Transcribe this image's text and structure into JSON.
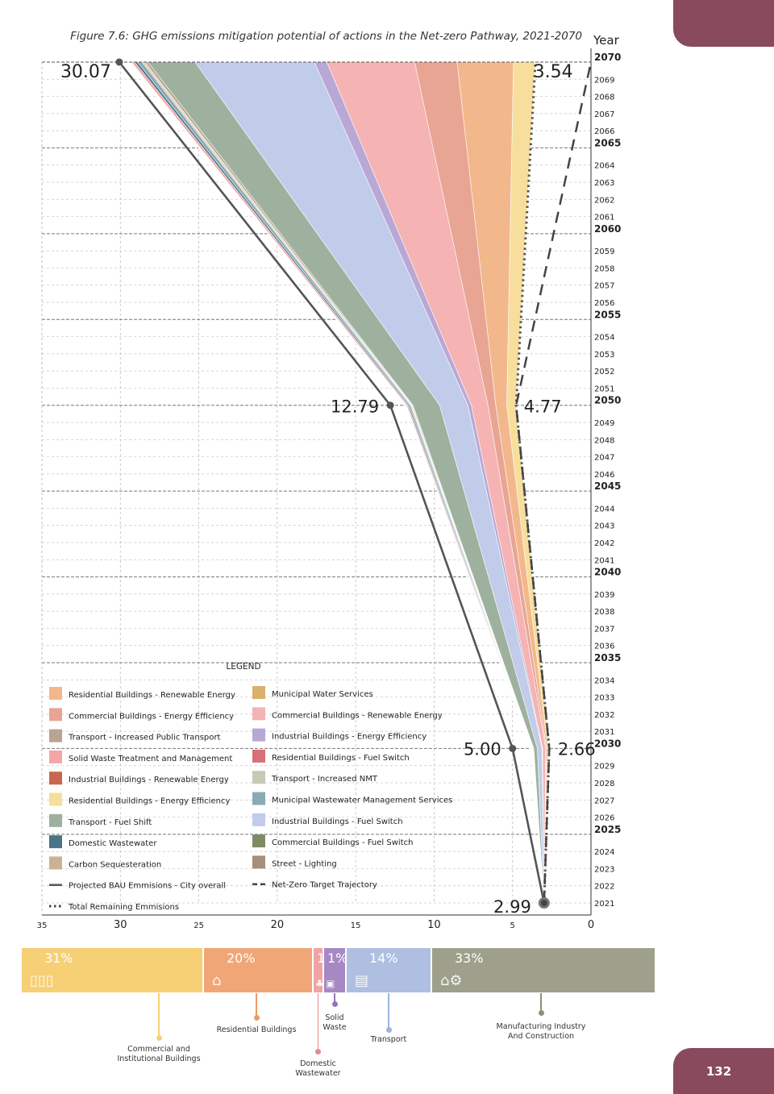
{
  "figure_title": "Figure 7.6: GHG emissions mitigation potential of actions in the Net-zero Pathway, 2021-2070",
  "page_number": "132",
  "colors": {
    "accent_tab": "#8a4a5e",
    "bau_line": "#555555",
    "net_zero_line": "#444444"
  },
  "chart_data": {
    "type": "area",
    "orientation": "horizontal",
    "yaxis": {
      "label": "Year",
      "range": [
        2021,
        2070
      ],
      "tick_labels": [
        "2070",
        "2069",
        "2068",
        "2067",
        "2066",
        "2065",
        "2064",
        "2063",
        "2062",
        "2061",
        "2060",
        "2059",
        "2058",
        "2057",
        "2056",
        "2055",
        "2054",
        "2053",
        "2052",
        "2051",
        "2050",
        "2049",
        "2048",
        "2047",
        "2046",
        "2045",
        "2044",
        "2043",
        "2042",
        "2041",
        "2040",
        "2039",
        "2038",
        "2037",
        "2036",
        "2035",
        "2034",
        "2033",
        "2032",
        "2031",
        "2030",
        "2029",
        "2028",
        "2027",
        "2026",
        "2025",
        "2024",
        "2023",
        "2022",
        "2021"
      ],
      "bold_ticks": [
        "2070",
        "2065",
        "2060",
        "2055",
        "2050",
        "2045",
        "2040",
        "2035",
        "2030",
        "2025"
      ]
    },
    "xaxis": {
      "range": [
        35,
        0
      ],
      "reversed": true,
      "tick_labels": [
        "35",
        "30",
        "25",
        "20",
        "15",
        "10",
        "5",
        "0"
      ],
      "tick_values": [
        35,
        30,
        25,
        20,
        15,
        10,
        5,
        0
      ],
      "bold_ticks": [
        "30",
        "20",
        "10",
        "0"
      ]
    },
    "grid": true,
    "key_years": [
      2021,
      2030,
      2050,
      2070
    ],
    "bau": {
      "name": "Projected BAU Emmisions - City overall",
      "values": [
        2.99,
        5.0,
        12.79,
        30.07
      ]
    },
    "remaining": {
      "name": "Total Remaining Emmisions",
      "values": [
        2.99,
        2.66,
        4.77,
        3.54
      ]
    },
    "net_zero": {
      "name": "Net-Zero Target Trajectory",
      "values": [
        2.99,
        2.66,
        4.77,
        0
      ]
    },
    "annotations": [
      {
        "text": "30.07",
        "year": 2070,
        "value": 30.07
      },
      {
        "text": "3.54",
        "year": 2070,
        "value": 3.54
      },
      {
        "text": "12.79",
        "year": 2050,
        "value": 12.79
      },
      {
        "text": "4.77",
        "year": 2050,
        "value": 4.77
      },
      {
        "text": "5.00",
        "year": 2030,
        "value": 5.0
      },
      {
        "text": "2.66",
        "year": 2030,
        "value": 2.66
      },
      {
        "text": "2.99",
        "year": 2021,
        "value": 2.99
      }
    ],
    "bands": [
      {
        "name": "Residential Buildings - Energy Efficiency",
        "color": "#f7de9c",
        "values": [
          0,
          0.1,
          0.6,
          1.4
        ]
      },
      {
        "name": "Residential Buildings - Renewable Energy",
        "color": "#f2b88c",
        "values": [
          0,
          0.08,
          0.7,
          3.6
        ]
      },
      {
        "name": "Commercial Buildings - Energy Efficiency",
        "color": "#e8a594",
        "values": [
          0,
          0.05,
          0.5,
          2.7
        ]
      },
      {
        "name": "Commercial Buildings - Renewable Energy",
        "color": "#f5b3b3",
        "values": [
          0,
          0.2,
          1.05,
          5.6
        ]
      },
      {
        "name": "Industrial Buildings  - Energy Efficiency",
        "color": "#b9a8d6",
        "values": [
          0,
          0.03,
          0.23,
          0.8
        ]
      },
      {
        "name": "Industrial Buildings   - Fuel Switch",
        "color": "#c1ccea",
        "values": [
          0,
          0.3,
          1.8,
          7.6
        ]
      },
      {
        "name": "Transport - Fuel Shift",
        "color": "#9eb19e",
        "values": [
          0,
          0.23,
          1.7,
          3.0
        ]
      },
      {
        "name": "Transport - Increased Public Transport",
        "color": "#b7a492",
        "values": [
          0,
          0.02,
          0.05,
          0.2
        ]
      },
      {
        "name": "Transport - Increased NMT",
        "color": "#c7c8b8",
        "values": [
          0,
          0.02,
          0.05,
          0.1
        ]
      },
      {
        "name": "Municipal Water Services",
        "color": "#d9b06e",
        "values": [
          0,
          0.02,
          0.05,
          0.09
        ]
      },
      {
        "name": "Municipal Wastewater Management Services",
        "color": "#8aaab6",
        "values": [
          0,
          0.02,
          0.1,
          0.28
        ]
      },
      {
        "name": "Domestic Wastewater",
        "color": "#4a7488",
        "values": [
          0,
          0.02,
          0.08,
          0.18
        ]
      },
      {
        "name": "Solid Waste Treatment and Management",
        "color": "#f4a6a6",
        "values": [
          0,
          0.02,
          0.08,
          0.2
        ]
      },
      {
        "name": "Industrial Buildings - Renewable Energy",
        "color": "#c96650",
        "values": [
          0,
          0.02,
          0.01,
          0.03
        ]
      },
      {
        "name": "Residential Buildings   - Fuel Switch",
        "color": "#d96f78",
        "values": [
          0,
          0.01,
          0.01,
          0.03
        ]
      },
      {
        "name": "Commercial Buildings  - Fuel Switch",
        "color": "#7e8c66",
        "values": [
          0,
          0.01,
          0.01,
          0.02
        ]
      },
      {
        "name": "Street - Lighting",
        "color": "#a58e7a",
        "values": [
          0,
          0.01,
          0.01,
          0.03
        ]
      },
      {
        "name": "Carbon Sequesteration",
        "color": "#c8b394",
        "values": [
          0,
          0.01,
          0.01,
          0.01
        ]
      }
    ]
  },
  "legend": {
    "title": "LEGEND",
    "left": [
      {
        "label": "Residential Buildings - Renewable Energy",
        "color": "#f2b88c",
        "kind": "swatch"
      },
      {
        "label": "Commercial Buildings - Energy Efficiency",
        "color": "#e8a594",
        "kind": "swatch"
      },
      {
        "label": "Transport - Increased Public Transport",
        "color": "#b7a492",
        "kind": "swatch"
      },
      {
        "label": "Solid Waste Treatment and Management",
        "color": "#f4a6a6",
        "kind": "swatch"
      },
      {
        "label": "Industrial Buildings - Renewable Energy",
        "color": "#c96650",
        "kind": "swatch"
      },
      {
        "label": "Residential Buildings - Energy Efficiency",
        "color": "#f7de9c",
        "kind": "swatch"
      },
      {
        "label": "Transport - Fuel Shift",
        "color": "#9eb19e",
        "kind": "swatch"
      },
      {
        "label": "Domestic Wastewater",
        "color": "#4a7488",
        "kind": "swatch"
      },
      {
        "label": "Carbon Sequesteration",
        "color": "#c8b394",
        "kind": "swatch"
      },
      {
        "label": "Projected BAU Emmisions - City overall",
        "color": "#555555",
        "kind": "solid"
      },
      {
        "label": "Total Remaining Emmisions",
        "color": "#444444",
        "kind": "dotted"
      }
    ],
    "right": [
      {
        "label": "Municipal Water Services",
        "color": "#d9b06e",
        "kind": "swatch"
      },
      {
        "label": "Commercial Buildings - Renewable Energy",
        "color": "#f5b3b3",
        "kind": "swatch"
      },
      {
        "label": "Industrial Buildings  - Energy Efficiency",
        "color": "#b9a8d6",
        "kind": "swatch"
      },
      {
        "label": "Residential Buildings   - Fuel Switch",
        "color": "#d96f78",
        "kind": "swatch"
      },
      {
        "label": "Transport - Increased NMT",
        "color": "#c7c8b8",
        "kind": "swatch"
      },
      {
        "label": "Municipal Wastewater Management Services",
        "color": "#8aaab6",
        "kind": "swatch"
      },
      {
        "label": "Industrial Buildings   - Fuel Switch",
        "color": "#c1ccea",
        "kind": "swatch"
      },
      {
        "label": "Commercial Buildings  - Fuel Switch",
        "color": "#7e8c66",
        "kind": "swatch"
      },
      {
        "label": "Street - Lighting",
        "color": "#a58e7a",
        "kind": "swatch"
      },
      {
        "label": "Net-Zero Target Trajectory",
        "color": "#444444",
        "kind": "dashed"
      }
    ]
  },
  "sector_shares": [
    {
      "pct": "31%",
      "share": 31,
      "label": "Commercial and\nInstitutional Buildings",
      "color": "#f7cf74",
      "pin_color": "#f7cf74",
      "icon": "building-icon"
    },
    {
      "pct": "20%",
      "share": 20,
      "label": "Residential Buildings",
      "color": "#f0a676",
      "pin_color": "#ec9a66",
      "icon": "house-icon"
    },
    {
      "pct": "1%",
      "share": 1,
      "label": "Domestic\nWastewater",
      "color": "#f1a3a3",
      "pin_color": "#e48c8c",
      "icon": "tree-icon"
    },
    {
      "pct": "1%",
      "share": 1,
      "label": "Solid\nWaste",
      "color": "#a588c4",
      "pin_color": "#9475b8",
      "icon": "bin-icon"
    },
    {
      "pct": "14%",
      "share": 14,
      "label": "Transport",
      "color": "#aebfe2",
      "pin_color": "#9fb3e0",
      "icon": "bus-icon"
    },
    {
      "pct": "33%",
      "share": 33,
      "label": "Manufacturing Industry\nAnd Construction",
      "color": "#9ea08c",
      "pin_color": "#8e907c",
      "icon": "factory-icon"
    }
  ]
}
